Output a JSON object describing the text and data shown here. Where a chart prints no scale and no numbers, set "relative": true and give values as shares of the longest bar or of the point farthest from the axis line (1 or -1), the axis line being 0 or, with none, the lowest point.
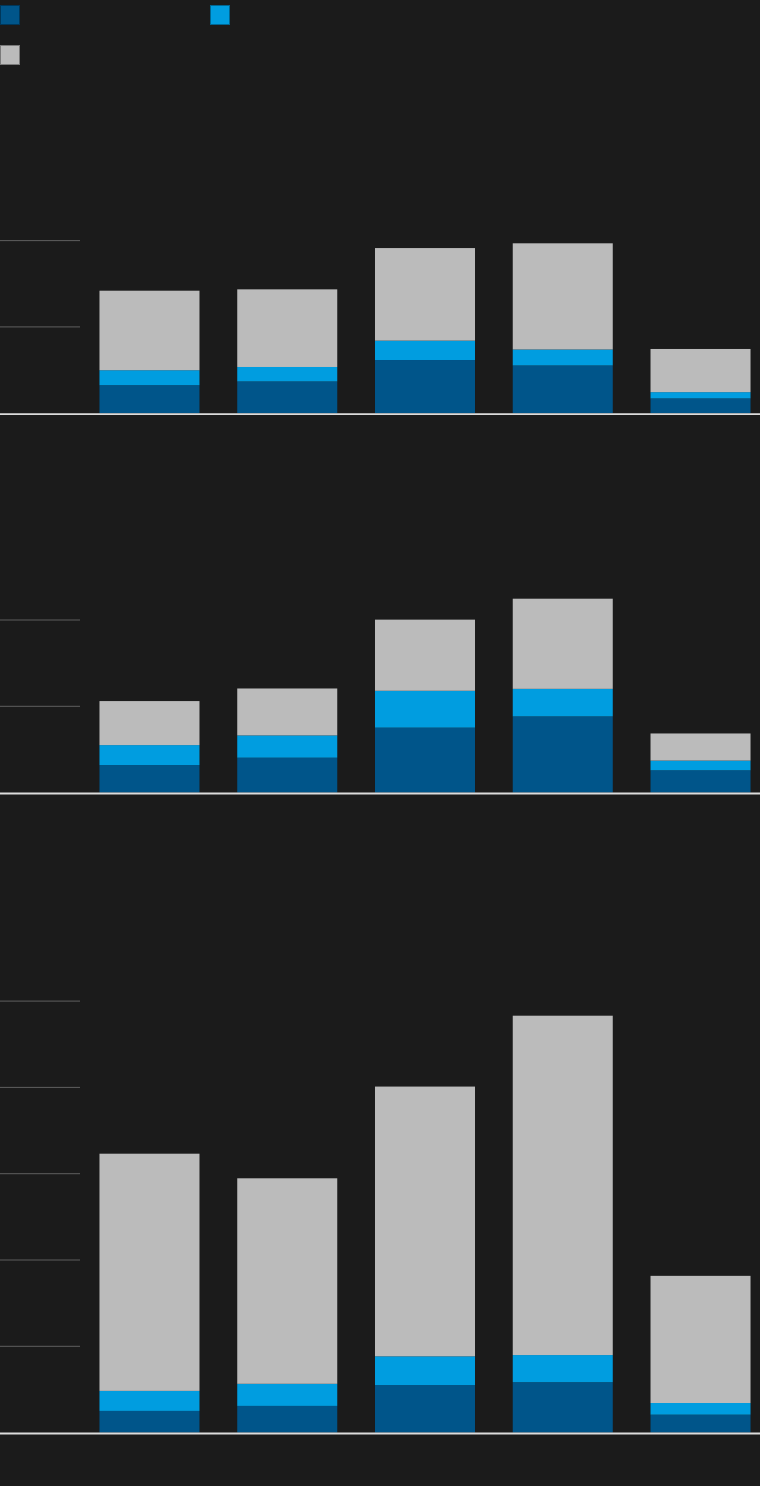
{
  "chart_data": [
    {
      "type": "bar",
      "relative": true,
      "stacked": true,
      "categories": [
        null,
        null,
        null,
        null,
        null
      ],
      "series": [
        {
          "color": "#00558a",
          "values": [
            0.165,
            0.187,
            0.313,
            0.281,
            0.087
          ]
        },
        {
          "color": "#009de0",
          "values": [
            0.088,
            0.085,
            0.114,
            0.094,
            0.037
          ]
        },
        {
          "color": "#bbbbbb",
          "values": [
            0.468,
            0.457,
            0.545,
            0.625,
            0.254
          ]
        }
      ]
    },
    {
      "type": "bar",
      "relative": true,
      "stacked": true,
      "categories": [
        null,
        null,
        null,
        null,
        null
      ],
      "series": [
        {
          "color": "#00558a",
          "values": [
            0.142,
            0.18,
            0.335,
            0.393,
            0.115
          ]
        },
        {
          "color": "#009de0",
          "values": [
            0.103,
            0.115,
            0.19,
            0.142,
            0.05
          ]
        },
        {
          "color": "#bbbbbb",
          "values": [
            0.227,
            0.242,
            0.367,
            0.465,
            0.14
          ]
        }
      ]
    },
    {
      "type": "bar",
      "relative": true,
      "stacked": true,
      "categories": [
        null,
        null,
        null,
        null,
        null
      ],
      "series": [
        {
          "color": "#00558a",
          "values": [
            0.052,
            0.064,
            0.114,
            0.121,
            0.043
          ]
        },
        {
          "color": "#009de0",
          "values": [
            0.048,
            0.053,
            0.069,
            0.065,
            0.028
          ]
        },
        {
          "color": "#bbbbbb",
          "values": [
            0.569,
            0.493,
            0.647,
            0.814,
            0.305
          ]
        }
      ]
    }
  ]
}
